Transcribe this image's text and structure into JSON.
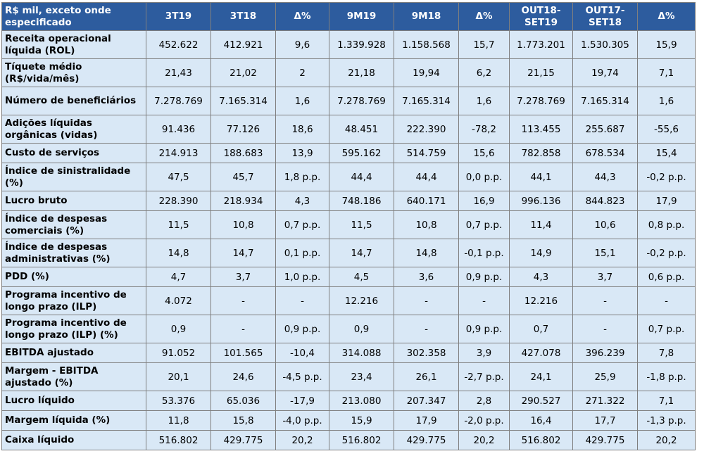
{
  "table": {
    "headers": [
      "R$ mil, exceto onde especificado",
      "3T19",
      "3T18",
      "Δ%",
      "9M19",
      "9M18",
      "Δ%",
      "OUT18-SET19",
      "OUT17-SET18",
      "Δ%"
    ],
    "rows": [
      {
        "label": "Receita operacional líquida (ROL)",
        "values": [
          "452.622",
          "412.921",
          "9,6",
          "1.339.928",
          "1.158.568",
          "15,7",
          "1.773.201",
          "1.530.305",
          "15,9"
        ]
      },
      {
        "label": "Tíquete médio (R$/vida/mês)",
        "values": [
          "21,43",
          "21,02",
          "2",
          "21,18",
          "19,94",
          "6,2",
          "21,15",
          "19,74",
          "7,1"
        ]
      },
      {
        "label": "Número de beneficiários",
        "values": [
          "7.278.769",
          "7.165.314",
          "1,6",
          "7.278.769",
          "7.165.314",
          "1,6",
          "7.278.769",
          "7.165.314",
          "1,6"
        ]
      },
      {
        "label": "Adições líquidas orgânicas (vidas)",
        "values": [
          "91.436",
          "77.126",
          "18,6",
          "48.451",
          "222.390",
          "-78,2",
          "113.455",
          "255.687",
          "-55,6"
        ]
      },
      {
        "label": "Custo de serviços",
        "values": [
          "214.913",
          "188.683",
          "13,9",
          "595.162",
          "514.759",
          "15,6",
          "782.858",
          "678.534",
          "15,4"
        ]
      },
      {
        "label": "Índice de sinistralidade (%)",
        "values": [
          "47,5",
          "45,7",
          "1,8 p.p.",
          "44,4",
          "44,4",
          "0,0 p.p.",
          "44,1",
          "44,3",
          "-0,2 p.p."
        ]
      },
      {
        "label": "Lucro bruto",
        "values": [
          "228.390",
          "218.934",
          "4,3",
          "748.186",
          "640.171",
          "16,9",
          "996.136",
          "844.823",
          "17,9"
        ]
      },
      {
        "label": "Índice de despesas comerciais (%)",
        "values": [
          "11,5",
          "10,8",
          "0,7 p.p.",
          "11,5",
          "10,8",
          "0,7 p.p.",
          "11,4",
          "10,6",
          "0,8 p.p."
        ]
      },
      {
        "label": "Índice de despesas administrativas (%)",
        "values": [
          "14,8",
          "14,7",
          "0,1 p.p.",
          "14,7",
          "14,8",
          "-0,1 p.p.",
          "14,9",
          "15,1",
          "-0,2 p.p."
        ]
      },
      {
        "label": "PDD (%)",
        "values": [
          "4,7",
          "3,7",
          "1,0 p.p.",
          "4,5",
          "3,6",
          "0,9 p.p.",
          "4,3",
          "3,7",
          "0,6 p.p."
        ]
      },
      {
        "label": "Programa incentivo de longo prazo (ILP)",
        "values": [
          "4.072",
          "-",
          "-",
          "12.216",
          "-",
          "-",
          "12.216",
          "-",
          "-"
        ]
      },
      {
        "label": "Programa incentivo de longo prazo (ILP) (%)",
        "values": [
          "0,9",
          "-",
          "0,9 p.p.",
          "0,9",
          "-",
          "0,9 p.p.",
          "0,7",
          "-",
          "0,7 p.p."
        ]
      },
      {
        "label": "EBITDA ajustado",
        "values": [
          "91.052",
          "101.565",
          "-10,4",
          "314.088",
          "302.358",
          "3,9",
          "427.078",
          "396.239",
          "7,8"
        ]
      },
      {
        "label": "Margem - EBITDA ajustado (%)",
        "values": [
          "20,1",
          "24,6",
          "-4,5 p.p.",
          "23,4",
          "26,1",
          "-2,7 p.p.",
          "24,1",
          "25,9",
          "-1,8 p.p."
        ]
      },
      {
        "label": "Lucro líquido",
        "values": [
          "53.376",
          "65.036",
          "-17,9",
          "213.080",
          "207.347",
          "2,8",
          "290.527",
          "271.322",
          "7,1"
        ]
      },
      {
        "label": "Margem líquida (%)",
        "values": [
          "11,8",
          "15,8",
          "-4,0 p.p.",
          "15,9",
          "17,9",
          "-2,0 p.p.",
          "16,4",
          "17,7",
          "-1,3 p.p."
        ]
      },
      {
        "label": "Caixa líquido",
        "values": [
          "516.802",
          "429.775",
          "20,2",
          "516.802",
          "429.775",
          "20,2",
          "516.802",
          "429.775",
          "20,2"
        ]
      }
    ]
  },
  "colors": {
    "header_bg": "#2d5c9e",
    "header_text": "#ffffff",
    "cell_bg": "#d9e8f6",
    "border": "#7f7f7f"
  }
}
